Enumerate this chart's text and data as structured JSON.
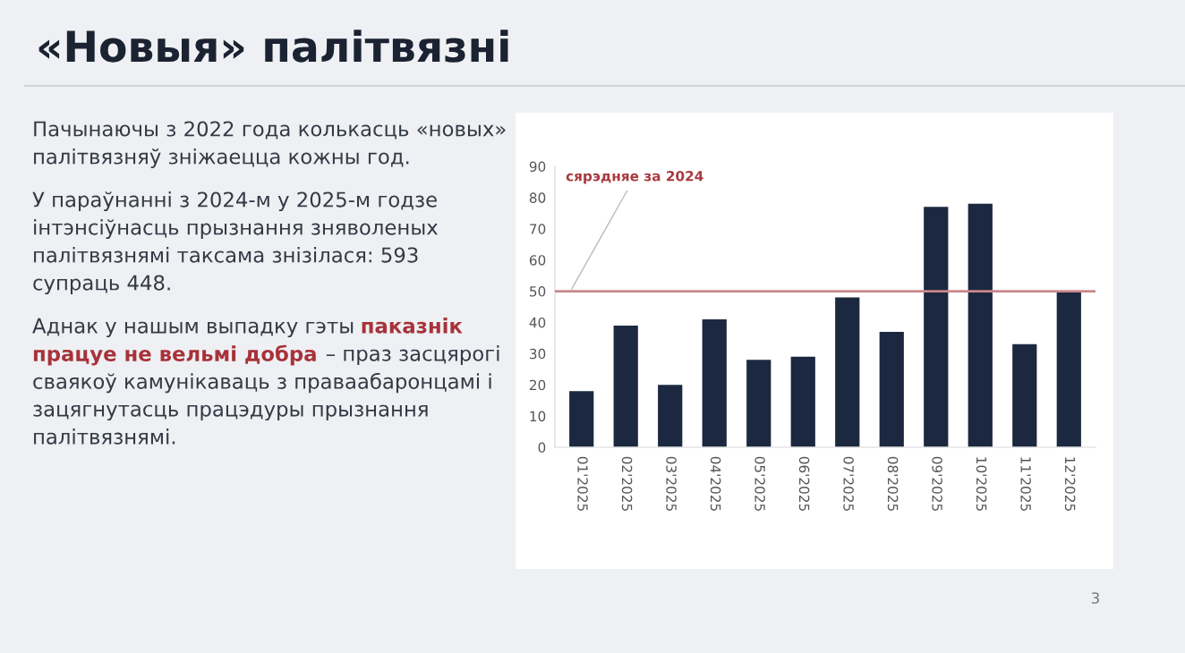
{
  "chart_data": {
    "type": "bar",
    "title": "«Новыя» палітвязні",
    "categories": [
      "01'2025",
      "02'2025",
      "03'2025",
      "04'2025",
      "05'2025",
      "06'2025",
      "07'2025",
      "08'2025",
      "09'2025",
      "10'2025",
      "11'2025",
      "12'2025"
    ],
    "values": [
      18,
      39,
      20,
      41,
      28,
      29,
      48,
      37,
      77,
      78,
      33,
      50
    ],
    "color": "#1b2840",
    "ylim": [
      0,
      90
    ],
    "yticks": [
      0,
      10,
      20,
      30,
      40,
      50,
      60,
      70,
      80,
      90
    ],
    "ref_lines": [
      {
        "axis": "y",
        "value": 50,
        "label": "сярэдняе за 2024",
        "color": "#c9878a"
      }
    ],
    "annotations": [
      "Пачынаючы з 2022 года колькасць «новых»\nпалітвязняў зніжаецца кожны год.",
      "У параўнанні з 2024-м у 2025-м годзе\nінтэнсіўнасць прызнання зняволеных\nпалітвязнямі таксама знізілася: 593\nсупраць 448.",
      "Аднак у нашым выпадку гэты ",
      "паказнік\nпрацуе не вельмі добра",
      " – праз засцярогі\nсваякоў камунікаваць з праваабаронцамі і\nзацягнутасць працэдуры прызнання\nпалітвязнямі.",
      "3"
    ]
  }
}
